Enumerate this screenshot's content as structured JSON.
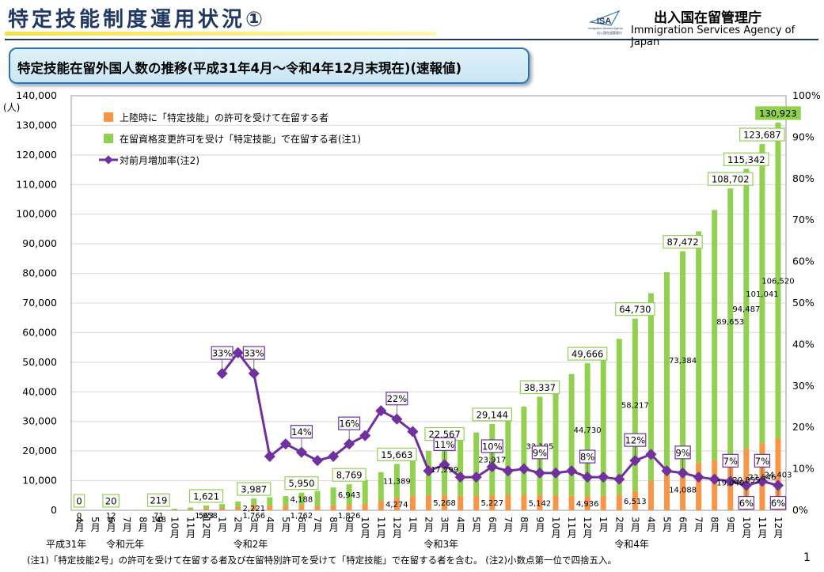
{
  "header": {
    "title": "特定技能制度運用状況①",
    "agency_ja": "出入国在留管理庁",
    "agency_en": "Immigration Services Agency of Japan",
    "logo_text": "ISA",
    "logo_sub": "出入国在留管理庁",
    "logo_en": "Immigration Services Agency"
  },
  "subtitle": "特定技能在留外国人数の推移(平成31年4月～令和4年12月末現在)(速報値)",
  "footnote": "(注1)「特定技能2号」の許可を受けて在留する者及び在留特別許可を受けて「特定技能」で在留する者を含む。 (注2)小数点第一位で四捨五入。",
  "page_number": "1",
  "colors": {
    "orange": "#f79646",
    "green": "#92d050",
    "purple": "#7030a0",
    "navy": "#1f3864",
    "grid": "#d9d9d9"
  },
  "chart_data": {
    "type": "bar",
    "stacked": true,
    "title": "",
    "ylabel": "(人)",
    "ylim": [
      0,
      140000
    ],
    "yticks": [
      "0",
      "10,000",
      "20,000",
      "30,000",
      "40,000",
      "50,000",
      "60,000",
      "70,000",
      "80,000",
      "90,000",
      "100,000",
      "110,000",
      "120,000",
      "130,000",
      "140,000"
    ],
    "y2lim": [
      0,
      100
    ],
    "y2ticks": [
      "0%",
      "10%",
      "20%",
      "30%",
      "40%",
      "50%",
      "60%",
      "70%",
      "80%",
      "90%",
      "100%"
    ],
    "grid": true,
    "legend_position": "top-left",
    "categories": [
      "4月",
      "5月",
      "6月",
      "7月",
      "8月",
      "9月",
      "10月",
      "11月",
      "12月",
      "1月",
      "2月",
      "3月",
      "4月",
      "5月",
      "6月",
      "7月",
      "8月",
      "9月",
      "10月",
      "11月",
      "12月",
      "1月",
      "2月",
      "3月",
      "4月",
      "5月",
      "6月",
      "7月",
      "8月",
      "9月",
      "10月",
      "11月",
      "12月",
      "1月",
      "2月",
      "3月",
      "4月",
      "5月",
      "6月",
      "7月",
      "8月",
      "9月",
      "10月",
      "11月",
      "12月"
    ],
    "year_labels": [
      {
        "at": 0,
        "text": "平成31年"
      },
      {
        "at": 2,
        "text": "令和元年"
      },
      {
        "at": 10,
        "text": "令和2年"
      },
      {
        "at": 22,
        "text": "令和3年"
      },
      {
        "at": 34,
        "text": "令和4年"
      }
    ],
    "series": [
      {
        "name": "上陸時に「特定技能」の許可を受けて在留する者",
        "kind": "bar",
        "color": "#f79646",
        "values": [
          0,
          2,
          12,
          30,
          50,
          71,
          120,
          250,
          563,
          800,
          1100,
          1766,
          1500,
          1600,
          1762,
          1500,
          1700,
          1826,
          2300,
          3200,
          4274,
          5000,
          5100,
          5268,
          5000,
          5100,
          5227,
          5200,
          5200,
          5142,
          5100,
          5000,
          4936,
          5000,
          5200,
          6513,
          10000,
          12000,
          14088,
          16000,
          17000,
          19049,
          20855,
          22646,
          24403
        ]
      },
      {
        "name": "在留資格変更許可を受け「特定技能」で在留する者(注1)",
        "kind": "bar",
        "color": "#92d050",
        "values": [
          0,
          10,
          8,
          120,
          100,
          148,
          400,
          700,
          1058,
          1300,
          1900,
          2221,
          2900,
          3200,
          4188,
          5000,
          6000,
          6943,
          8000,
          9700,
          11389,
          13700,
          15000,
          17299,
          19300,
          21200,
          23917,
          26500,
          29800,
          33195,
          36700,
          41000,
          44730,
          48500,
          52700,
          58217,
          63300,
          68400,
          73384,
          78200,
          84400,
          89653,
          94487,
          101041,
          106520
        ]
      },
      {
        "name": "対前月増加率(注2)",
        "kind": "line",
        "color": "#7030a0",
        "axis": "right",
        "values": [
          null,
          null,
          null,
          null,
          null,
          null,
          null,
          null,
          null,
          33,
          38,
          33,
          13,
          16,
          14,
          12,
          13,
          16,
          18,
          24,
          22,
          19,
          9.5,
          11,
          8,
          8,
          10.5,
          9.5,
          10,
          9,
          9,
          9.5,
          8,
          8,
          7.5,
          12,
          13.5,
          9.5,
          9,
          8,
          7.5,
          7,
          6,
          7,
          6
        ]
      }
    ],
    "total_labels": [
      {
        "at": 0,
        "text": "0"
      },
      {
        "at": 2,
        "text": "20"
      },
      {
        "at": 5,
        "text": "219"
      },
      {
        "at": 8,
        "text": "1,621"
      },
      {
        "at": 11,
        "text": "3,987"
      },
      {
        "at": 14,
        "text": "5,950"
      },
      {
        "at": 17,
        "text": "8,769"
      },
      {
        "at": 20,
        "text": "15,663"
      },
      {
        "at": 23,
        "text": "22,567"
      },
      {
        "at": 26,
        "text": "29,144"
      },
      {
        "at": 29,
        "text": "38,337"
      },
      {
        "at": 32,
        "text": "49,666"
      },
      {
        "at": 35,
        "text": "64,730"
      },
      {
        "at": 38,
        "text": "87,472"
      },
      {
        "at": 41,
        "text": "108,702"
      },
      {
        "at": 42,
        "text": "115,342"
      },
      {
        "at": 43,
        "text": "123,687"
      },
      {
        "at": 44,
        "text": "130,923",
        "highlight": true
      }
    ],
    "orange_labels": [
      {
        "at": 0,
        "text": "0"
      },
      {
        "at": 2,
        "text": "12"
      },
      {
        "at": 5,
        "text": "71"
      },
      {
        "at": 8,
        "text": "563"
      },
      {
        "at": 11,
        "text": "1,766"
      },
      {
        "at": 14,
        "text": "1,762"
      },
      {
        "at": 17,
        "text": "1,826"
      },
      {
        "at": 20,
        "text": "4,274"
      },
      {
        "at": 23,
        "text": "5,268"
      },
      {
        "at": 26,
        "text": "5,227"
      },
      {
        "at": 29,
        "text": "5,142"
      },
      {
        "at": 32,
        "text": "4,936"
      },
      {
        "at": 35,
        "text": "6,513"
      },
      {
        "at": 38,
        "text": "14,088"
      },
      {
        "at": 41,
        "text": "19,049"
      },
      {
        "at": 42,
        "text": "20,855"
      },
      {
        "at": 43,
        "text": "22,646"
      },
      {
        "at": 44,
        "text": "24,403"
      }
    ],
    "green_labels": [
      {
        "at": 0,
        "text": "0"
      },
      {
        "at": 2,
        "text": "8"
      },
      {
        "at": 5,
        "text": "148"
      },
      {
        "at": 8,
        "text": "1,058"
      },
      {
        "at": 11,
        "text": "2,221"
      },
      {
        "at": 14,
        "text": "4,188"
      },
      {
        "at": 17,
        "text": "6,943"
      },
      {
        "at": 20,
        "text": "11,389"
      },
      {
        "at": 23,
        "text": "17,299"
      },
      {
        "at": 26,
        "text": "23,917"
      },
      {
        "at": 29,
        "text": "33,195"
      },
      {
        "at": 32,
        "text": "44,730"
      },
      {
        "at": 35,
        "text": "58,217"
      },
      {
        "at": 38,
        "text": "73,384"
      },
      {
        "at": 41,
        "text": "89,653"
      },
      {
        "at": 42,
        "text": "94,487"
      },
      {
        "at": 43,
        "text": "101,041"
      },
      {
        "at": 44,
        "text": "106,520"
      }
    ],
    "rate_labels": [
      {
        "at": 9,
        "text": "33%"
      },
      {
        "at": 11,
        "text": "33%"
      },
      {
        "at": 14,
        "text": "14%"
      },
      {
        "at": 17,
        "text": "16%"
      },
      {
        "at": 20,
        "text": "22%"
      },
      {
        "at": 23,
        "text": "11%"
      },
      {
        "at": 26,
        "text": "10%"
      },
      {
        "at": 29,
        "text": "9%"
      },
      {
        "at": 32,
        "text": "8%"
      },
      {
        "at": 35,
        "text": "12%"
      },
      {
        "at": 38,
        "text": "9%"
      },
      {
        "at": 41,
        "text": "7%"
      },
      {
        "at": 42,
        "text": "6%"
      },
      {
        "at": 43,
        "text": "7%"
      },
      {
        "at": 44,
        "text": "6%"
      }
    ]
  }
}
